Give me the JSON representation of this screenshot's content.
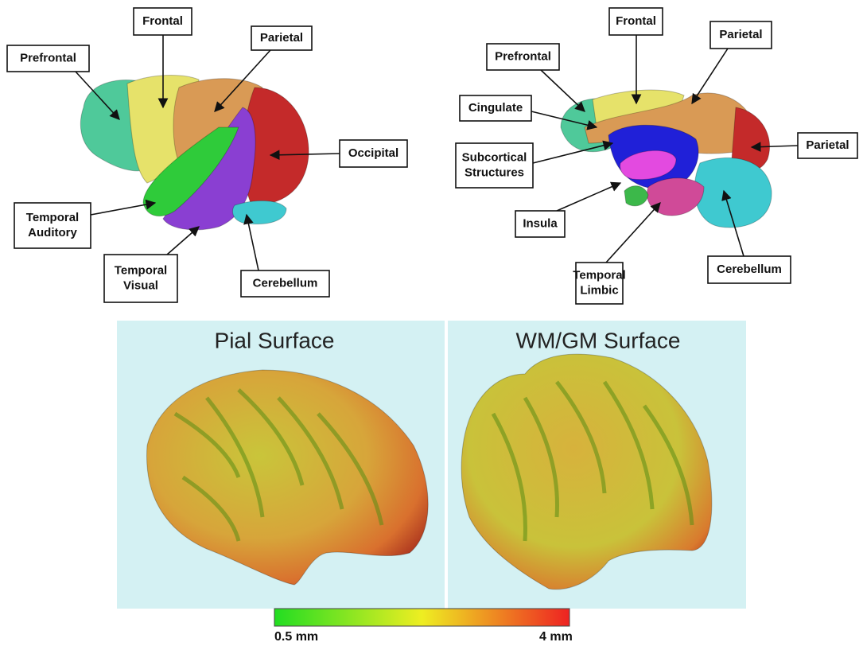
{
  "lateral_view": {
    "labels": [
      {
        "lines": [
          "Frontal"
        ]
      },
      {
        "lines": [
          "Parietal"
        ]
      },
      {
        "lines": [
          "Prefrontal"
        ]
      },
      {
        "lines": [
          "Occipital"
        ]
      },
      {
        "lines": [
          "Temporal",
          "Auditory"
        ]
      },
      {
        "lines": [
          "Temporal",
          "Visual"
        ]
      },
      {
        "lines": [
          "Cerebellum"
        ]
      }
    ]
  },
  "medial_view": {
    "labels": [
      {
        "lines": [
          "Frontal"
        ]
      },
      {
        "lines": [
          "Parietal"
        ]
      },
      {
        "lines": [
          "Prefrontal"
        ]
      },
      {
        "lines": [
          "Cingulate"
        ]
      },
      {
        "lines": [
          "Subcortical",
          "Structures"
        ]
      },
      {
        "lines": [
          "Parietal"
        ]
      },
      {
        "lines": [
          "Insula"
        ]
      },
      {
        "lines": [
          "Temporal",
          "Limbic"
        ]
      },
      {
        "lines": [
          "Cerebellum"
        ]
      }
    ]
  },
  "surfaces": {
    "panels": [
      {
        "title": "Pial Surface"
      },
      {
        "title": "WM/GM Surface"
      }
    ],
    "colorbar": {
      "min_label": "0.5 mm",
      "max_label": "4 mm"
    }
  }
}
